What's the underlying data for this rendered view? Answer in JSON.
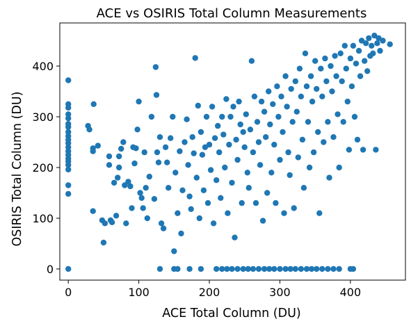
{
  "chart_data": {
    "type": "scatter",
    "title": "ACE vs OSIRIS Total Column Measurements",
    "xlabel": "ACE Total Column (DU)",
    "ylabel": "OSIRIS Total Column (DU)",
    "xlim": [
      -12,
      478
    ],
    "ylim": [
      -22,
      485
    ],
    "xticks": [
      0,
      100,
      200,
      300,
      400
    ],
    "yticks": [
      0,
      100,
      200,
      300,
      400
    ],
    "grid": false,
    "legend": "none",
    "marker_color": "#1f77b4",
    "series": [
      {
        "points": [
          [
            0,
            372
          ],
          [
            0,
            325
          ],
          [
            0,
            318
          ],
          [
            0,
            305
          ],
          [
            0,
            297
          ],
          [
            0,
            286
          ],
          [
            0,
            280
          ],
          [
            0,
            270
          ],
          [
            0,
            262
          ],
          [
            0,
            255
          ],
          [
            0,
            248
          ],
          [
            0,
            240
          ],
          [
            0,
            232
          ],
          [
            0,
            225
          ],
          [
            0,
            218
          ],
          [
            0,
            212
          ],
          [
            0,
            205
          ],
          [
            0,
            196
          ],
          [
            0,
            165
          ],
          [
            0,
            148
          ],
          [
            0,
            0
          ],
          [
            28,
            282
          ],
          [
            30,
            275
          ],
          [
            35,
            238
          ],
          [
            35,
            232
          ],
          [
            35,
            114
          ],
          [
            36,
            325
          ],
          [
            42,
            243
          ],
          [
            48,
            96
          ],
          [
            50,
            52
          ],
          [
            52,
            90
          ],
          [
            58,
            205
          ],
          [
            58,
            222
          ],
          [
            60,
            96
          ],
          [
            62,
            92
          ],
          [
            65,
            170
          ],
          [
            68,
            105
          ],
          [
            70,
            180
          ],
          [
            72,
            200
          ],
          [
            72,
            222
          ],
          [
            75,
            237
          ],
          [
            78,
            250
          ],
          [
            80,
            165
          ],
          [
            82,
            90
          ],
          [
            85,
            172
          ],
          [
            88,
            163
          ],
          [
            90,
            120
          ],
          [
            92,
            240
          ],
          [
            94,
            208
          ],
          [
            96,
            238
          ],
          [
            98,
            275
          ],
          [
            100,
            330
          ],
          [
            102,
            150
          ],
          [
            104,
            140
          ],
          [
            106,
            120
          ],
          [
            108,
            230
          ],
          [
            110,
            160
          ],
          [
            112,
            100
          ],
          [
            115,
            182
          ],
          [
            118,
            300
          ],
          [
            122,
            138
          ],
          [
            124,
            398
          ],
          [
            125,
            343
          ],
          [
            126,
            230
          ],
          [
            128,
            210
          ],
          [
            130,
            260
          ],
          [
            132,
            90
          ],
          [
            135,
            80
          ],
          [
            138,
            240
          ],
          [
            140,
            210
          ],
          [
            142,
            160
          ],
          [
            145,
            258
          ],
          [
            148,
            300
          ],
          [
            150,
            35
          ],
          [
            152,
            190
          ],
          [
            155,
            110
          ],
          [
            158,
            232
          ],
          [
            160,
            70
          ],
          [
            162,
            155
          ],
          [
            165,
            250
          ],
          [
            168,
            295
          ],
          [
            170,
            205
          ],
          [
            172,
            143
          ],
          [
            174,
            118
          ],
          [
            176,
            260
          ],
          [
            178,
            228
          ],
          [
            180,
            416
          ],
          [
            182,
            180
          ],
          [
            184,
            322
          ],
          [
            186,
            100
          ],
          [
            188,
            270
          ],
          [
            190,
            225
          ],
          [
            192,
            155
          ],
          [
            194,
            240
          ],
          [
            196,
            300
          ],
          [
            198,
            130
          ],
          [
            200,
            245
          ],
          [
            202,
            195
          ],
          [
            204,
            320
          ],
          [
            206,
            90
          ],
          [
            208,
            258
          ],
          [
            210,
            175
          ],
          [
            212,
            282
          ],
          [
            214,
            230
          ],
          [
            216,
            140
          ],
          [
            218,
            300
          ],
          [
            220,
            265
          ],
          [
            222,
            200
          ],
          [
            224,
            335
          ],
          [
            226,
            110
          ],
          [
            228,
            245
          ],
          [
            230,
            300
          ],
          [
            232,
            170
          ],
          [
            234,
            320
          ],
          [
            236,
            62
          ],
          [
            238,
            255
          ],
          [
            240,
            215
          ],
          [
            242,
            330
          ],
          [
            244,
            285
          ],
          [
            246,
            130
          ],
          [
            248,
            270
          ],
          [
            250,
            240
          ],
          [
            252,
            305
          ],
          [
            254,
            190
          ],
          [
            256,
            160
          ],
          [
            258,
            275
          ],
          [
            260,
            410
          ],
          [
            262,
            230
          ],
          [
            264,
            340
          ],
          [
            266,
            130
          ],
          [
            268,
            290
          ],
          [
            270,
            250
          ],
          [
            272,
            205
          ],
          [
            274,
            330
          ],
          [
            276,
            95
          ],
          [
            278,
            310
          ],
          [
            280,
            260
          ],
          [
            282,
            150
          ],
          [
            284,
            350
          ],
          [
            286,
            285
          ],
          [
            288,
            190
          ],
          [
            290,
            325
          ],
          [
            292,
            245
          ],
          [
            294,
            130
          ],
          [
            296,
            360
          ],
          [
            298,
            300
          ],
          [
            300,
            215
          ],
          [
            302,
            340
          ],
          [
            304,
            270
          ],
          [
            306,
            110
          ],
          [
            308,
            380
          ],
          [
            310,
            320
          ],
          [
            312,
            230
          ],
          [
            314,
            185
          ],
          [
            316,
            355
          ],
          [
            318,
            290
          ],
          [
            320,
            120
          ],
          [
            322,
            370
          ],
          [
            324,
            310
          ],
          [
            326,
            220
          ],
          [
            328,
            395
          ],
          [
            330,
            340
          ],
          [
            332,
            255
          ],
          [
            334,
            160
          ],
          [
            336,
            425
          ],
          [
            338,
            360
          ],
          [
            340,
            290
          ],
          [
            342,
            200
          ],
          [
            344,
            380
          ],
          [
            346,
            330
          ],
          [
            348,
            230
          ],
          [
            350,
            410
          ],
          [
            352,
            355
          ],
          [
            354,
            270
          ],
          [
            356,
            110
          ],
          [
            358,
            395
          ],
          [
            360,
            340
          ],
          [
            362,
            250
          ],
          [
            364,
            415
          ],
          [
            366,
            370
          ],
          [
            368,
            290
          ],
          [
            370,
            180
          ],
          [
            372,
            400
          ],
          [
            374,
            350
          ],
          [
            376,
            260
          ],
          [
            378,
            420
          ],
          [
            380,
            380
          ],
          [
            382,
            305
          ],
          [
            384,
            200
          ],
          [
            386,
            425
          ],
          [
            388,
            370
          ],
          [
            390,
            290
          ],
          [
            392,
            440
          ],
          [
            394,
            395
          ],
          [
            396,
            330
          ],
          [
            398,
            235
          ],
          [
            400,
            415
          ],
          [
            402,
            360
          ],
          [
            404,
            440
          ],
          [
            406,
            300
          ],
          [
            408,
            405
          ],
          [
            410,
            255
          ],
          [
            412,
            430
          ],
          [
            414,
            380
          ],
          [
            416,
            450
          ],
          [
            418,
            235
          ],
          [
            420,
            410
          ],
          [
            422,
            445
          ],
          [
            424,
            390
          ],
          [
            426,
            455
          ],
          [
            428,
            420
          ],
          [
            430,
            440
          ],
          [
            432,
            425
          ],
          [
            434,
            460
          ],
          [
            436,
            235
          ],
          [
            438,
            445
          ],
          [
            440,
            455
          ],
          [
            442,
            430
          ],
          [
            446,
            450
          ],
          [
            456,
            443
          ],
          [
            130,
            0
          ],
          [
            150,
            0
          ],
          [
            155,
            0
          ],
          [
            172,
            0
          ],
          [
            188,
            0
          ],
          [
            210,
            0
          ],
          [
            218,
            0
          ],
          [
            225,
            0
          ],
          [
            232,
            0
          ],
          [
            240,
            0
          ],
          [
            248,
            0
          ],
          [
            255,
            0
          ],
          [
            262,
            0
          ],
          [
            270,
            0
          ],
          [
            278,
            0
          ],
          [
            285,
            0
          ],
          [
            292,
            0
          ],
          [
            300,
            0
          ],
          [
            308,
            0
          ],
          [
            315,
            0
          ],
          [
            322,
            0
          ],
          [
            330,
            0
          ],
          [
            338,
            0
          ],
          [
            345,
            0
          ],
          [
            352,
            0
          ],
          [
            360,
            0
          ],
          [
            368,
            0
          ],
          [
            376,
            0
          ],
          [
            384,
            0
          ],
          [
            400,
            0
          ],
          [
            404,
            0
          ]
        ]
      }
    ]
  }
}
